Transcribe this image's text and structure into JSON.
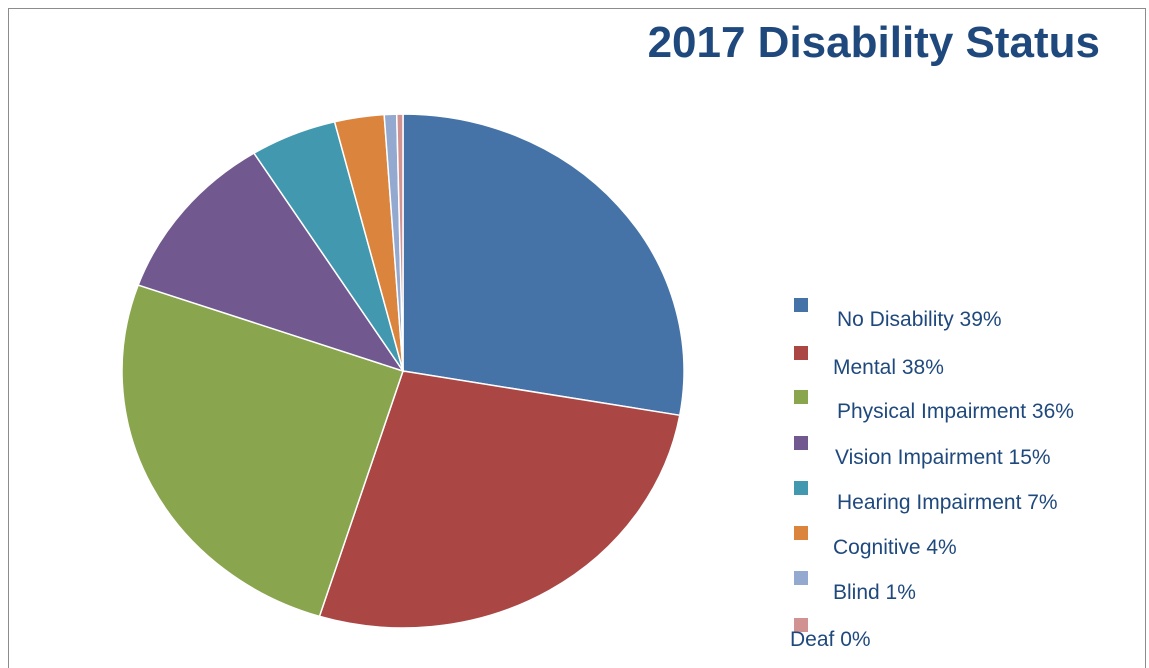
{
  "chart_data": {
    "type": "pie",
    "title": "2017 Disability Status",
    "slices": [
      {
        "label": "No Disability 39%",
        "value": 39,
        "color": "#4572a7"
      },
      {
        "label": "Mental 38%",
        "value": 38,
        "color": "#aa4643"
      },
      {
        "label": "Physical Impairment 36%",
        "value": 36,
        "color": "#89a54e"
      },
      {
        "label": "Vision Impairment 15%",
        "value": 15,
        "color": "#71588f"
      },
      {
        "label": "Hearing Impairment 7%",
        "value": 7,
        "color": "#4198af"
      },
      {
        "label": "Cognitive 4%",
        "value": 4,
        "color": "#db843d"
      },
      {
        "label": "Blind 1%",
        "value": 1,
        "color": "#93a9cf"
      },
      {
        "label": "Deaf 0%",
        "value": 0.5,
        "color": "#d19392"
      }
    ],
    "legend_position": "right"
  }
}
